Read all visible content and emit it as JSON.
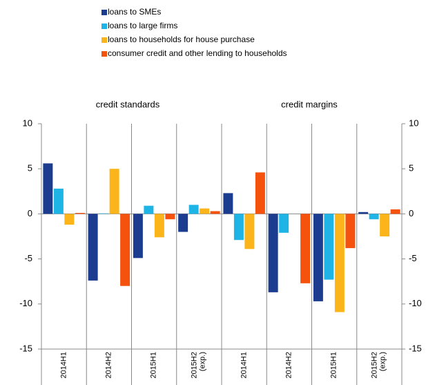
{
  "chart_data": {
    "type": "bar",
    "annotations": [
      "credit standards",
      "credit margins"
    ],
    "categories": [
      "2014H1",
      "2014H2",
      "2015H1",
      "2015H2\n(exp.)",
      "2014H1",
      "2014H2",
      "2015H1",
      "2015H2\n(exp.)"
    ],
    "series": [
      {
        "name": "loans to SMEs",
        "color": "#1b3c8f",
        "values": [
          5.6,
          -7.4,
          -4.9,
          -2.0,
          2.3,
          -8.7,
          -9.7,
          0.2
        ]
      },
      {
        "name": "loans to large firms",
        "color": "#1fb4e6",
        "values": [
          2.8,
          0.05,
          0.9,
          1.0,
          -2.9,
          -2.1,
          -7.3,
          -0.6
        ]
      },
      {
        "name": "loans to households for house purchase",
        "color": "#fbb51a",
        "values": [
          -1.2,
          5.0,
          -2.6,
          0.6,
          -3.9,
          0,
          -10.9,
          -2.5
        ]
      },
      {
        "name": "consumer credit and other lending to households",
        "color": "#f5520d",
        "values": [
          0.1,
          -8.0,
          -0.6,
          0.3,
          4.6,
          -7.7,
          -3.8,
          0.5
        ]
      }
    ],
    "ylim": [
      -15,
      10
    ],
    "yticks": [
      -15,
      -10,
      -5,
      0,
      5,
      10
    ],
    "y2lim": [
      -15,
      10
    ],
    "y2ticks": [
      -15,
      -10,
      -5,
      0,
      5,
      10
    ]
  }
}
